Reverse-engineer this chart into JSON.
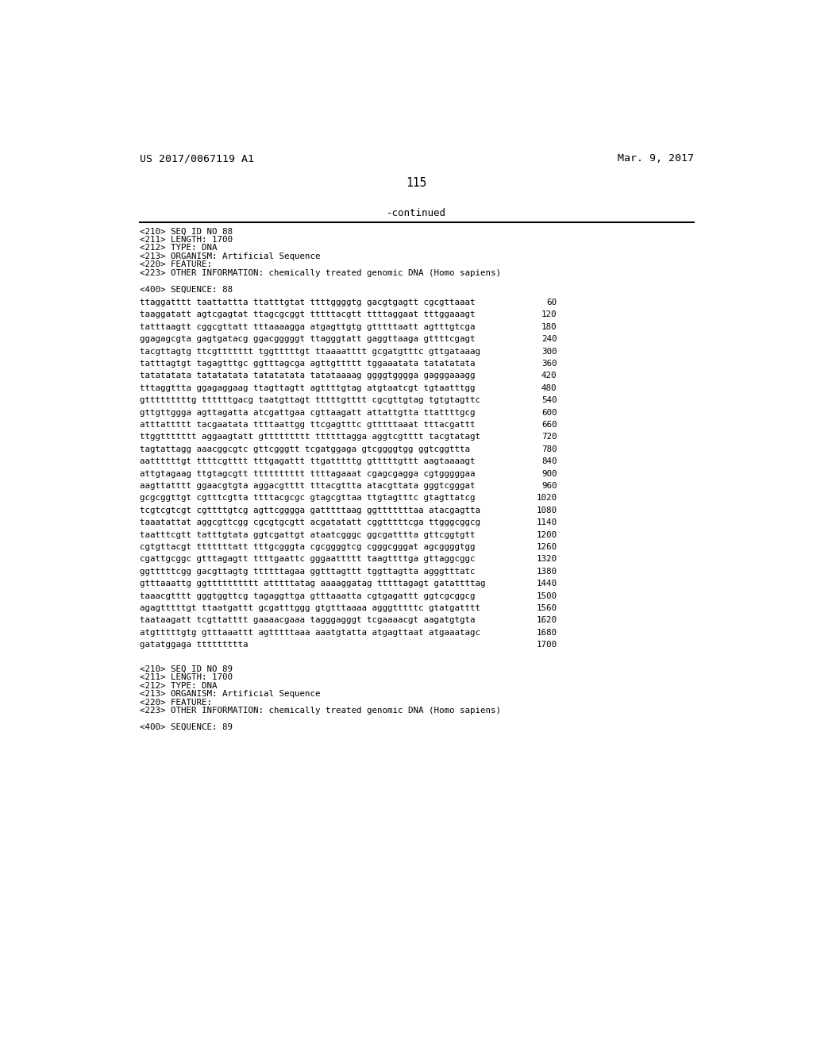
{
  "background_color": "#ffffff",
  "header_left": "US 2017/0067119 A1",
  "header_right": "Mar. 9, 2017",
  "page_number": "115",
  "continued_text": "-continued",
  "metadata_lines": [
    "<210> SEQ ID NO 88",
    "<211> LENGTH: 1700",
    "<212> TYPE: DNA",
    "<213> ORGANISM: Artificial Sequence",
    "<220> FEATURE:",
    "<223> OTHER INFORMATION: chemically treated genomic DNA (Homo sapiens)"
  ],
  "sequence_header": "<400> SEQUENCE: 88",
  "sequence_lines": [
    [
      "ttaggatttt taattattta ttatttgtat ttttggggtg gacgtgagtt cgcgttaaat",
      "60"
    ],
    [
      "taaggatatt agtcgagtat ttagcgcggt tttttacgtt ttttaggaat tttggaaagt",
      "120"
    ],
    [
      "tatttaagtt cggcgttatt tttaaaagga atgagttgtg gtttttaatt agtttgtcga",
      "180"
    ],
    [
      "ggagagcgta gagtgatacg ggacgggggt ttagggtatt gaggttaaga gttttcgagt",
      "240"
    ],
    [
      "tacgttagtg ttcgttttttt tggtttttgt ttaaaatttt gcgatgtttc gttgataaag",
      "300"
    ],
    [
      "tatttagtgt tagagtttgc ggtttagcga agttgttttt tggaaatata tatatatata",
      "360"
    ],
    [
      "tatatatata tatatatata tatatatata tatataaaag ggggtgggga gagggaaagg",
      "420"
    ],
    [
      "tttaggttta ggagaggaag ttagttagtt agttttgtag atgtaatcgt tgtaatttgg",
      "480"
    ],
    [
      "gtttttttttg ttttttgacg taatgttagt tttttgtttt cgcgttgtag tgtgtagttc",
      "540"
    ],
    [
      "gttgttggga agttagatta atcgattgaa cgttaagatt attattgtta ttattttgcg",
      "600"
    ],
    [
      "atttattttt tacgaatata ttttaattgg ttcgagtttc gtttttaaat tttacgattt",
      "660"
    ],
    [
      "ttggttttttt aggaagtatt gttttttttt ttttttagga aggtcgtttt tacgtatagt",
      "720"
    ],
    [
      "tagtattagg aaacggcgtc gttcgggtt tcgatggaga gtcggggtgg ggtcggttta",
      "780"
    ],
    [
      "aattttttgt ttttcgtttt tttgagattt ttgatttttg gtttttgttt aagtaaaagt",
      "840"
    ],
    [
      "attgtagaag ttgtagcgtt tttttttttt ttttagaaat cgagcgagga cgtgggggaa",
      "900"
    ],
    [
      "aagttatttt ggaacgtgta aggacgtttt tttacgttta atacgttata gggtcgggat",
      "960"
    ],
    [
      "gcgcggttgt cgtttcgtta ttttacgcgc gtagcgttaa ttgtagtttc gtagttatcg",
      "1020"
    ],
    [
      "tcgtcgtcgt cgttttgtcg agttcgggga gatttttaag ggtttttttaa atacgagtta",
      "1080"
    ],
    [
      "taaatattat aggcgttcgg cgcgtgcgtt acgatatatt cggtttttcga ttgggcggcg",
      "1140"
    ],
    [
      "taatttcgtt tatttgtata ggtcgattgt ataatcgggc ggcgatttta gttcggtgtt",
      "1200"
    ],
    [
      "cgtgttacgt tttttttatt tttgcgggta cgcggggtcg cgggcgggat agcggggtgg",
      "1260"
    ],
    [
      "cgattgcggc gtttagagtt ttttgaattc gggaattttt taagttttga gttaggcggc",
      "1320"
    ],
    [
      "ggtttttcgg gacgttagtg ttttttagaa ggtttagttt tggttagtta agggtttatc",
      "1380"
    ],
    [
      "gtttaaattg ggtttttttttt atttttatag aaaaggatag tttttagagt gatattttag",
      "1440"
    ],
    [
      "taaacgtttt gggtggttcg tagaggttga gtttaaatta cgtgagattt ggtcgcggcg",
      "1500"
    ],
    [
      "agagtttttgt ttaatgattt gcgatttggg gtgtttaaaa agggtttttc gtatgatttt",
      "1560"
    ],
    [
      "taataagatt tcgttatttt gaaaacgaaa tagggagggt tcgaaaacgt aagatgtgta",
      "1620"
    ],
    [
      "atgtttttgtg gtttaaattt agtttttaaa aaatgtatta atgagttaat atgaaatagc",
      "1680"
    ],
    [
      "gatatggaga ttttttttta",
      "1700"
    ]
  ],
  "footer_metadata_lines": [
    "<210> SEQ ID NO 89",
    "<211> LENGTH: 1700",
    "<212> TYPE: DNA",
    "<213> ORGANISM: Artificial Sequence",
    "<220> FEATURE:",
    "<223> OTHER INFORMATION: chemically treated genomic DNA (Homo sapiens)"
  ],
  "footer_sequence_header": "<400> SEQUENCE: 89"
}
